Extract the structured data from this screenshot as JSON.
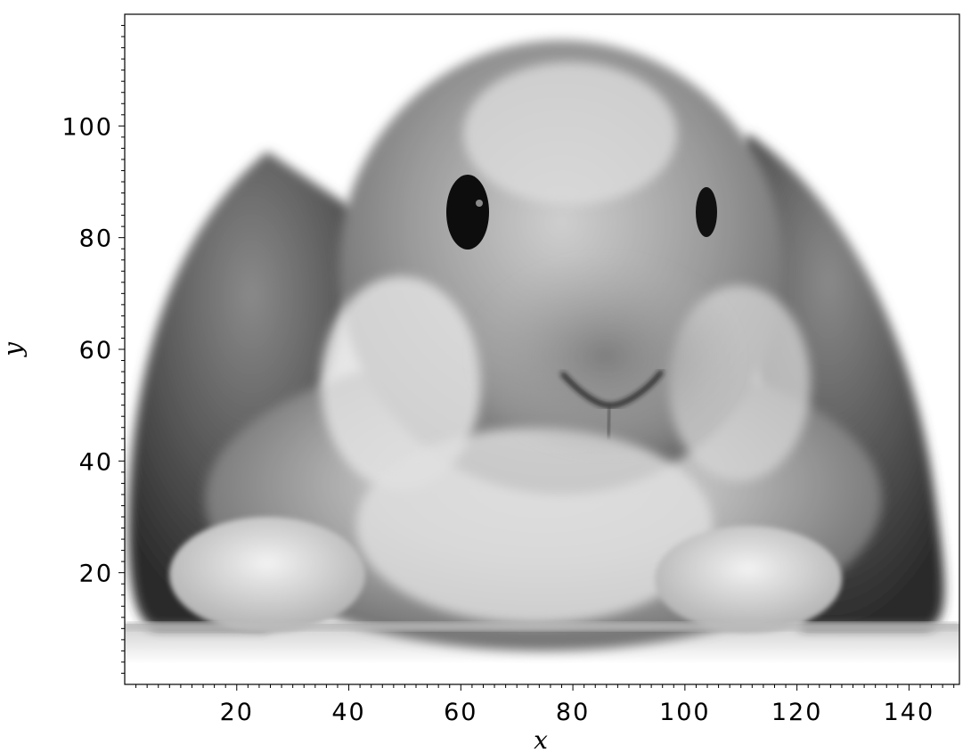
{
  "chart_data": {
    "type": "image",
    "image_subject": "rabbit",
    "xlabel": "x",
    "ylabel": "y",
    "xlim": [
      0,
      149
    ],
    "ylim": [
      0,
      120
    ],
    "x_ticks": [
      20,
      40,
      60,
      80,
      100,
      120,
      140
    ],
    "y_ticks": [
      20,
      40,
      60,
      80,
      100
    ],
    "x_minor_step": 2,
    "y_minor_step": 2,
    "grid": false,
    "colormap": "grayscale"
  }
}
